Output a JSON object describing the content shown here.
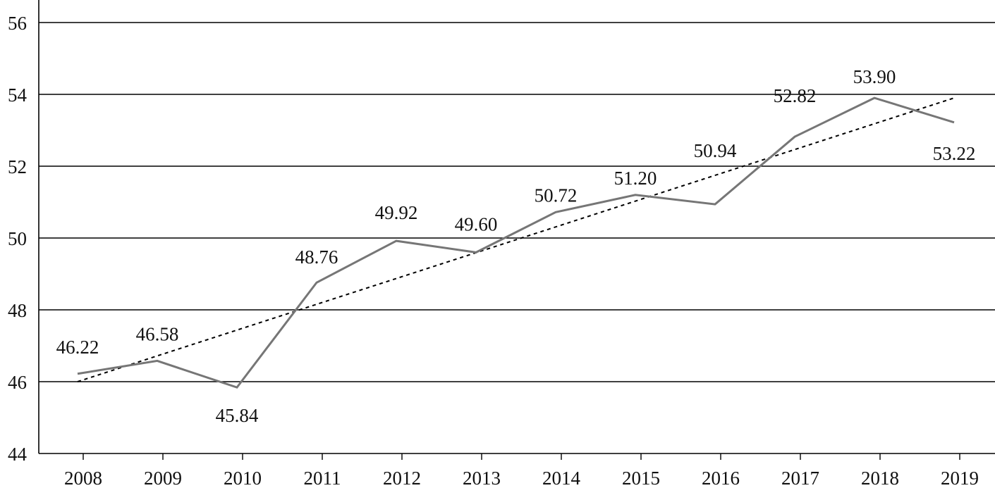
{
  "chart_data": {
    "type": "line",
    "categories": [
      "2008",
      "2009",
      "2010",
      "2011",
      "2012",
      "2013",
      "2014",
      "2015",
      "2016",
      "2017",
      "2018",
      "2019"
    ],
    "series": [
      {
        "values": [
          46.22,
          46.58,
          45.84,
          48.76,
          49.92,
          49.6,
          50.72,
          51.2,
          50.94,
          52.82,
          53.9,
          53.22
        ],
        "data_labels": [
          "46.22",
          "46.58",
          "45.84",
          "48.76",
          "49.92",
          "49.60",
          "50.72",
          "51.20",
          "50.94",
          "52.82",
          "53.90",
          "53.22"
        ],
        "color": "#767676",
        "style": "solid"
      }
    ],
    "trendline": {
      "type": "linear",
      "style": "dotted",
      "color": "#000000",
      "start_value": 46.0,
      "end_value": 53.9
    },
    "y_ticks": [
      "44",
      "46",
      "48",
      "50",
      "52",
      "54",
      "56"
    ],
    "ylim": [
      44,
      56.5
    ],
    "grid": {
      "horizontal": true,
      "vertical": false
    },
    "legend": "none",
    "gridline_color": "#000000",
    "axis_color": "#000000"
  }
}
